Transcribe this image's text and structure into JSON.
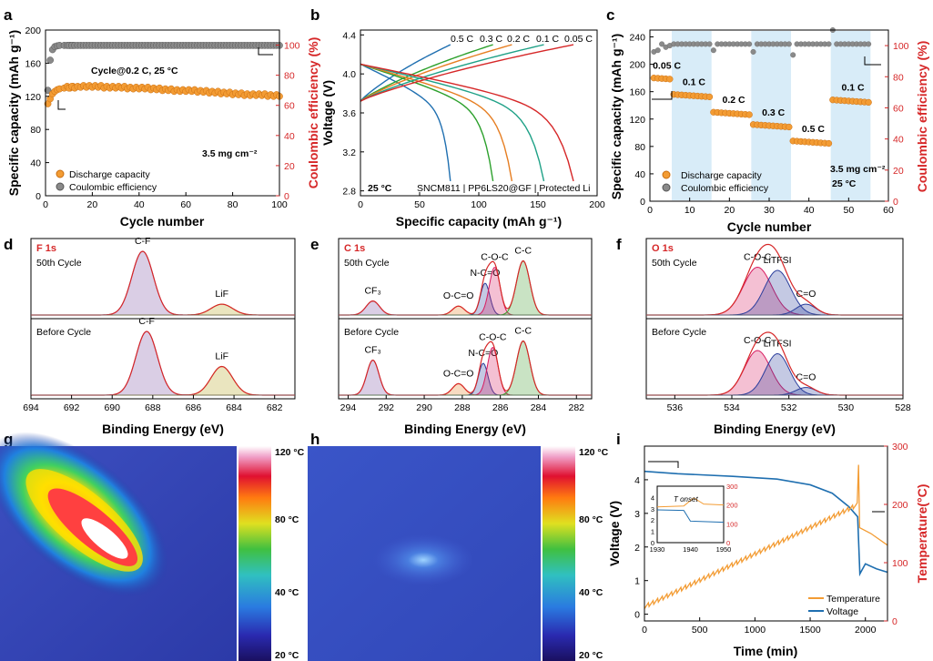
{
  "panels": {
    "a": {
      "label": "a"
    },
    "b": {
      "label": "b"
    },
    "c": {
      "label": "c"
    },
    "d": {
      "label": "d"
    },
    "e": {
      "label": "e"
    },
    "f": {
      "label": "f"
    },
    "g": {
      "label": "g"
    },
    "h": {
      "label": "h"
    },
    "i": {
      "label": "i"
    }
  },
  "colors": {
    "orange": "#f39c34",
    "gray": "#8a8a8a",
    "red": "#d62728",
    "blue": "#1f6fb0",
    "rate_band": "#d8ecf8"
  },
  "chart_data": [
    {
      "id": "a",
      "type": "scatter",
      "xlabel": "Cycle number",
      "ylabel": "Specific capacity (mAh g⁻¹)",
      "y2label": "Coulombic efficiency (%)",
      "xlim": [
        0,
        100
      ],
      "ylim": [
        0,
        200
      ],
      "y2lim": [
        0,
        110
      ],
      "xticks": [
        "0",
        "20",
        "40",
        "60",
        "80",
        "100"
      ],
      "yticks": [
        "0",
        "40",
        "80",
        "120",
        "160",
        "200"
      ],
      "y2ticks": [
        "0",
        "20",
        "40",
        "60",
        "80",
        "100"
      ],
      "annotation": "Cycle@0.2 C, 25 °C",
      "loading": "3.5 mg cm⁻²",
      "legend": [
        "Discharge capacity",
        "Coulombic efficiency"
      ],
      "series": [
        {
          "name": "Discharge capacity",
          "axis": "left",
          "x": [
            1,
            2,
            3,
            4,
            5,
            6,
            8,
            10,
            15,
            20,
            25,
            30,
            35,
            40,
            45,
            50,
            55,
            60,
            65,
            70,
            75,
            80,
            85,
            90,
            95,
            100
          ],
          "values": [
            112,
            118,
            124,
            127,
            129,
            130,
            131,
            131,
            132,
            132,
            131,
            131,
            130,
            130,
            129,
            128,
            127,
            127,
            126,
            125,
            124,
            123,
            122,
            122,
            121,
            121
          ]
        },
        {
          "name": "Coulombic efficiency",
          "axis": "right",
          "x": [
            1,
            2,
            3,
            4,
            5,
            6,
            8,
            10,
            15,
            20,
            25,
            30,
            35,
            40,
            45,
            50,
            55,
            60,
            65,
            70,
            75,
            80,
            85,
            90,
            95,
            100
          ],
          "values": [
            70,
            90,
            97,
            99,
            99.5,
            99.8,
            99.8,
            99.8,
            99.8,
            99.8,
            99.8,
            99.8,
            99.8,
            99.8,
            99.8,
            99.8,
            99.8,
            99.8,
            99.8,
            99.8,
            99.8,
            99.8,
            99.8,
            99.8,
            99.8,
            99.8
          ]
        }
      ]
    },
    {
      "id": "b",
      "type": "line",
      "xlabel": "Specific capacity (mAh g⁻¹)",
      "ylabel": "Voltage (V)",
      "xlim": [
        0,
        200
      ],
      "ylim": [
        2.75,
        4.45
      ],
      "xticks": [
        "0",
        "50",
        "100",
        "150",
        "200"
      ],
      "yticks": [
        "2.8",
        "3.2",
        "3.6",
        "4.0",
        "4.4"
      ],
      "temperature": "25 °C",
      "cell": "SNCM811 | PP6LS20@GF | Protected Li",
      "series": [
        {
          "name": "0.5 C",
          "color": "#1f6fb0",
          "capacity": 76
        },
        {
          "name": "0.3 C",
          "color": "#2ca02c",
          "capacity": 112
        },
        {
          "name": "0.2 C",
          "color": "#e67e22",
          "capacity": 128
        },
        {
          "name": "0.1 C",
          "color": "#1fa187",
          "capacity": 155
        },
        {
          "name": "0.05 C",
          "color": "#d62728",
          "capacity": 180
        }
      ]
    },
    {
      "id": "c",
      "type": "scatter",
      "xlabel": "Cycle number",
      "ylabel": "Specific capacity (mAh g⁻¹)",
      "y2label": "Coulombic efficiency (%)",
      "xlim": [
        0,
        60
      ],
      "ylim": [
        0,
        250
      ],
      "y2lim": [
        0,
        110
      ],
      "xticks": [
        "0",
        "10",
        "20",
        "30",
        "40",
        "50",
        "60"
      ],
      "yticks": [
        "0",
        "40",
        "80",
        "120",
        "160",
        "200",
        "240"
      ],
      "y2ticks": [
        "0",
        "20",
        "40",
        "60",
        "80",
        "100"
      ],
      "loading": "3.5 mg cm⁻²",
      "temperature": "25 °C",
      "legend": [
        "Discharge capacity",
        "Coulombic efficiency"
      ],
      "segments": [
        {
          "rate": "0.05 C",
          "start": 1,
          "end": 5,
          "capacity": 180,
          "band": false
        },
        {
          "rate": "0.1 C",
          "start": 6,
          "end": 15,
          "capacity": 156,
          "band": true
        },
        {
          "rate": "0.2 C",
          "start": 16,
          "end": 25,
          "capacity": 130,
          "band": false
        },
        {
          "rate": "0.3 C",
          "start": 26,
          "end": 35,
          "capacity": 112,
          "band": true
        },
        {
          "rate": "0.5 C",
          "start": 36,
          "end": 45,
          "capacity": 88,
          "band": false
        },
        {
          "rate": "0.1 C",
          "start": 46,
          "end": 55,
          "capacity": 148,
          "band": true
        }
      ],
      "ce_values": {
        "first": [
          96,
          97,
          101,
          99,
          100
        ],
        "outliers": [
          [
            16,
            97
          ],
          [
            26,
            96
          ],
          [
            36,
            94
          ],
          [
            46,
            110
          ]
        ],
        "steady": 101
      }
    },
    {
      "id": "d",
      "type": "line",
      "element": "F 1s",
      "xlabel": "Binding Energy (eV)",
      "xlim": [
        694,
        681
      ],
      "xticks": [
        "694",
        "692",
        "690",
        "688",
        "686",
        "684",
        "682"
      ],
      "top": {
        "label": "50th Cycle",
        "peaks": [
          {
            "name": "C-F",
            "center": 688.5,
            "height": 1.0,
            "width": 0.75,
            "color": "#7b4ea3"
          },
          {
            "name": "LiF",
            "center": 684.6,
            "height": 0.17,
            "width": 0.75,
            "color": "#b5a01a"
          }
        ]
      },
      "bottom": {
        "label": "Before Cycle",
        "peaks": [
          {
            "name": "C-F",
            "center": 688.3,
            "height": 1.0,
            "width": 0.75,
            "color": "#7b4ea3"
          },
          {
            "name": "LiF",
            "center": 684.6,
            "height": 0.45,
            "width": 0.75,
            "color": "#b5a01a"
          }
        ]
      }
    },
    {
      "id": "e",
      "type": "line",
      "element": "C 1s",
      "xlabel": "Binding Energy (eV)",
      "xlim": [
        294.5,
        281.2
      ],
      "xticks": [
        "294",
        "292",
        "290",
        "288",
        "286",
        "284",
        "282"
      ],
      "top": {
        "label": "50th Cycle",
        "peaks": [
          {
            "name": "CF₃",
            "center": 292.7,
            "height": 0.22,
            "width": 0.5,
            "color": "#7b4ea3"
          },
          {
            "name": "O-C=O",
            "center": 288.2,
            "height": 0.14,
            "width": 0.45,
            "color": "#e67e22"
          },
          {
            "name": "N-C=O",
            "center": 286.8,
            "height": 0.5,
            "width": 0.35,
            "color": "#2a3d9c"
          },
          {
            "name": "C-O-C",
            "center": 286.3,
            "height": 0.75,
            "width": 0.4,
            "color": "#d81b60"
          },
          {
            "name": "C-C",
            "center": 284.8,
            "height": 0.85,
            "width": 0.5,
            "color": "#3c9a2a"
          }
        ]
      },
      "bottom": {
        "label": "Before Cycle",
        "peaks": [
          {
            "name": "CF₃",
            "center": 292.7,
            "height": 0.55,
            "width": 0.45,
            "color": "#7b4ea3"
          },
          {
            "name": "O-C=O",
            "center": 288.2,
            "height": 0.18,
            "width": 0.45,
            "color": "#e67e22"
          },
          {
            "name": "N-C=O",
            "center": 286.9,
            "height": 0.5,
            "width": 0.35,
            "color": "#2a3d9c"
          },
          {
            "name": "C-O-C",
            "center": 286.4,
            "height": 0.75,
            "width": 0.4,
            "color": "#d81b60"
          },
          {
            "name": "C-C",
            "center": 284.8,
            "height": 0.85,
            "width": 0.5,
            "color": "#3c9a2a"
          }
        ]
      }
    },
    {
      "id": "f",
      "type": "line",
      "element": "O 1s",
      "xlabel": "Binding Energy (eV)",
      "xlim": [
        537,
        528
      ],
      "xticks": [
        "536",
        "534",
        "532",
        "530",
        "528"
      ],
      "top": {
        "label": "50th Cycle",
        "peaks": [
          {
            "name": "C-O-C",
            "center": 533.1,
            "height": 0.75,
            "width": 0.7,
            "color": "#d81b60"
          },
          {
            "name": "LiTFSI",
            "center": 532.4,
            "height": 0.7,
            "width": 0.65,
            "color": "#2a3d9c"
          },
          {
            "name": "C=O",
            "center": 531.4,
            "height": 0.17,
            "width": 0.5,
            "color": "#2a3d9c"
          }
        ]
      },
      "bottom": {
        "label": "Before Cycle",
        "peaks": [
          {
            "name": "C-O-C",
            "center": 533.1,
            "height": 0.7,
            "width": 0.65,
            "color": "#d81b60"
          },
          {
            "name": "LiTFSI",
            "center": 532.4,
            "height": 0.65,
            "width": 0.6,
            "color": "#2a3d9c"
          },
          {
            "name": "C=O",
            "center": 531.4,
            "height": 0.12,
            "width": 0.5,
            "color": "#2a3d9c"
          }
        ]
      }
    },
    {
      "id": "g",
      "type": "heatmap",
      "colorbar_ticks": [
        "120 °C",
        "80 °C",
        "40 °C",
        "20 °C"
      ]
    },
    {
      "id": "h",
      "type": "heatmap",
      "colorbar_ticks": [
        "120 °C",
        "80 °C",
        "40 °C",
        "20 °C"
      ]
    },
    {
      "id": "i",
      "type": "line",
      "xlabel": "Time (min)",
      "ylabel": "Voltage (V)",
      "y2label": "Temperature(°C)",
      "xlim": [
        0,
        2200
      ],
      "ylim": [
        -0.2,
        5.0
      ],
      "y2lim": [
        0,
        300
      ],
      "xticks": [
        "0",
        "500",
        "1000",
        "1500",
        "2000"
      ],
      "yticks": [
        "0",
        "1",
        "2",
        "3",
        "4"
      ],
      "y2ticks": [
        "0",
        "100",
        "200",
        "300"
      ],
      "legend": [
        "Temperature",
        "Voltage"
      ],
      "voltage": {
        "x": [
          0,
          300,
          800,
          1200,
          1500,
          1700,
          1850,
          1930,
          1950,
          2000,
          2100,
          2200
        ],
        "y": [
          4.25,
          4.18,
          4.1,
          4.02,
          3.85,
          3.6,
          3.2,
          2.9,
          1.2,
          1.5,
          1.35,
          1.25
        ]
      },
      "temperature": {
        "start": 25,
        "peak_time": 1930,
        "peak_value": 200,
        "spike_value": 268,
        "end_time": 2200,
        "end_value": 130,
        "ripple_period": 42,
        "ripple_amp": 8
      },
      "inset": {
        "xticks": [
          "1930",
          "1940",
          "1950"
        ],
        "yticks": [
          "0",
          "1",
          "2",
          "3",
          "4"
        ],
        "y2ticks": [
          "0",
          "100",
          "200",
          "300"
        ],
        "label": "T onset"
      }
    }
  ]
}
